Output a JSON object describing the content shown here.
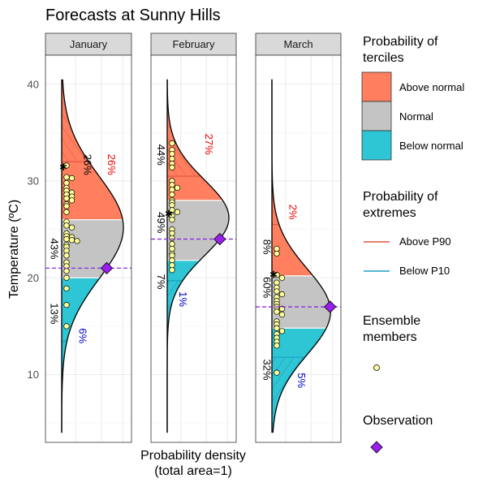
{
  "title": "Forecasts at Sunny Hills",
  "colors": {
    "above_normal": "#ff7f5f",
    "normal": "#c4c4c4",
    "below_normal": "#2ec5d4",
    "above_p90": "#e0553d",
    "below_p10": "#1b9fc4",
    "ensemble_fill": "#ffff99",
    "observation": "#9a1ef0",
    "obs_line": "#8a2be2",
    "pct_above": "#ee0000",
    "pct_below": "#0000cc"
  },
  "chart_data": {
    "type": "density",
    "y_label": "Temperature (ºC)",
    "x_label_line1": "Probability density",
    "x_label_line2": "(total area=1)",
    "ylim": [
      3,
      43
    ],
    "yticks": [
      10,
      20,
      30,
      40
    ],
    "panels": [
      {
        "label": "January",
        "mean": 25.2,
        "sd": 5.3,
        "x_scale": 1.0,
        "tercile_low": 20.0,
        "tercile_high": 26.0,
        "p10": 13.5,
        "p90": 32.0,
        "observation": 21.0,
        "ensemble": [
          31.6,
          30.4,
          30.3,
          29.8,
          29.3,
          29.0,
          28.8,
          28.6,
          28.4,
          28.2,
          28.0,
          27.6,
          27.4,
          26.8,
          25.8,
          25.4,
          25.2,
          24.6,
          24.3,
          24.2,
          24.0,
          23.9,
          23.8,
          23.4,
          23.2,
          22.8,
          22.3,
          21.6,
          21.2,
          20.7,
          20.0,
          18.9,
          17.2,
          15.0
        ],
        "best_member": 31.5,
        "pct_above": "26%",
        "pct_normal": "43%",
        "pct_below": "13%",
        "pct_ext_above": "26%",
        "pct_ext_below": "6%",
        "pct_above_pos": [
          0.36,
          31.7
        ],
        "pct_normal_pos": [
          -0.18,
          23.0
        ],
        "pct_below_pos": [
          -0.18,
          16.3
        ],
        "pct_ext_above_pos": [
          0.75,
          31.7
        ],
        "pct_ext_below_pos": [
          0.28,
          14.0
        ]
      },
      {
        "label": "February",
        "mean": 26.2,
        "sd": 3.9,
        "x_scale": 1.0,
        "tercile_low": 21.8,
        "tercile_high": 28.0,
        "p10": 19.7,
        "p90": 30.5,
        "observation": 24.0,
        "ensemble": [
          33.9,
          33.2,
          32.8,
          32.3,
          31.8,
          31.4,
          30.0,
          29.6,
          29.3,
          29.1,
          28.6,
          28.0,
          27.8,
          27.5,
          27.0,
          26.8,
          26.4,
          26.0,
          25.0,
          24.6,
          24.1,
          23.5,
          23.0,
          22.5,
          22.3,
          21.8,
          21.3,
          20.8
        ],
        "best_member": 26.7,
        "pct_above": "44%",
        "pct_normal": "49%",
        "pct_below": "7%",
        "pct_ext_above": "27%",
        "pct_ext_below": "1%",
        "pct_above_pos": [
          -0.16,
          32.7
        ],
        "pct_normal_pos": [
          -0.16,
          25.7
        ],
        "pct_below_pos": [
          -0.16,
          19.6
        ],
        "pct_ext_above_pos": [
          0.62,
          33.8
        ],
        "pct_ext_below_pos": [
          0.2,
          17.8
        ]
      },
      {
        "label": "March",
        "mean": 16.5,
        "sd": 4.4,
        "x_scale": 0.95,
        "tercile_low": 14.8,
        "tercile_high": 20.2,
        "p10": 11.8,
        "p90": 25.5,
        "observation": 17.0,
        "ensemble": [
          23.0,
          22.5,
          20.3,
          20.0,
          19.5,
          19.0,
          18.6,
          18.3,
          18.0,
          17.6,
          17.3,
          17.0,
          16.8,
          16.5,
          16.2,
          15.5,
          15.2,
          14.8,
          14.5,
          14.2,
          13.8,
          13.4,
          13.0,
          10.2
        ],
        "best_member": 20.4,
        "pct_above": "8%",
        "pct_normal": "60%",
        "pct_below": "32%",
        "pct_ext_above": "2%",
        "pct_ext_below": "5%",
        "pct_above_pos": [
          -0.14,
          23.2
        ],
        "pct_normal_pos": [
          -0.14,
          19.0
        ],
        "pct_below_pos": [
          -0.14,
          10.5
        ],
        "pct_ext_above_pos": [
          0.28,
          26.8
        ],
        "pct_ext_below_pos": [
          0.42,
          9.4
        ]
      }
    ]
  },
  "legend": {
    "terciles_title_1": "Probability of",
    "terciles_title_2": "terciles",
    "above_normal": "Above normal",
    "normal": "Normal",
    "below_normal": "Below normal",
    "extremes_title_1": "Probability of",
    "extremes_title_2": "extremes",
    "above_p90": "Above P90",
    "below_p10": "Below P10",
    "ensemble_title_1": "Ensemble",
    "ensemble_title_2": "members",
    "observation_title": "Observation"
  }
}
